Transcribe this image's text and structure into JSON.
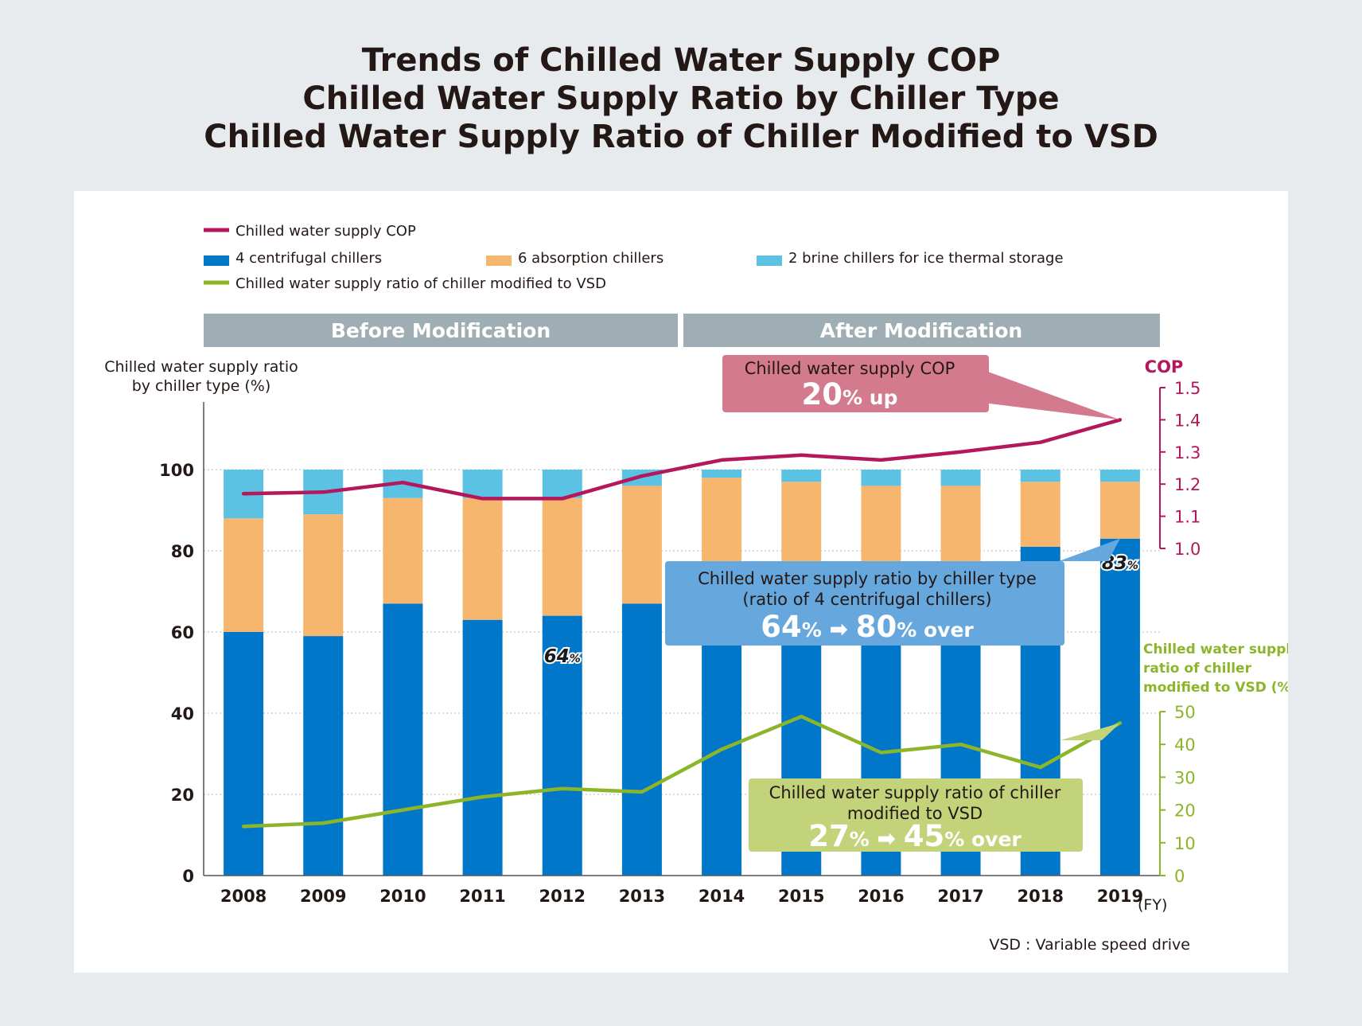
{
  "title_lines": [
    "Trends of Chilled Water Supply COP",
    "Chilled Water Supply Ratio by Chiller Type",
    "Chilled Water Supply Ratio of Chiller Modified to VSD"
  ],
  "colors": {
    "centrifugal": "#0077c8",
    "absorption": "#f7b66e",
    "brine": "#5bc2e4",
    "cop": "#b5175c",
    "vsd": "#8cb52a",
    "period_band": "#9eaeb4",
    "cop_callout": "#d47a8e",
    "ratio_callout": "#66a7dd",
    "vsd_callout": "#c3d37a"
  },
  "legend": {
    "cop": "Chilled water supply COP",
    "centrifugal": "4 centrifugal chillers",
    "absorption": "6 absorption chillers",
    "brine": "2 brine chillers for ice thermal storage",
    "vsd": "Chilled water supply ratio of chiller modified to VSD"
  },
  "periods": {
    "before": "Before Modification",
    "after": "After Modification"
  },
  "axes": {
    "left_label_lines": [
      "Chilled water supply ratio",
      "by chiller type (%)"
    ],
    "cop_label": "COP",
    "vsd_label_lines": [
      "Chilled water supply",
      "ratio of chiller",
      "modified to VSD (%)"
    ],
    "fy_label": "(FY)"
  },
  "callouts": {
    "cop": {
      "line1": "Chilled water supply COP",
      "big": "20",
      "small": "% up"
    },
    "ratio": {
      "line1": "Chilled water supply ratio by chiller type",
      "line2": "(ratio of 4 centrifugal chillers)",
      "big1": "64",
      "pct1": "%",
      "arrow": "➡",
      "big2": "80",
      "pct2": "% over"
    },
    "vsd": {
      "line1": "Chilled water supply ratio of chiller",
      "line2": "modified to VSD",
      "big1": "27",
      "pct1": "%",
      "arrow": "➡",
      "big2": "45",
      "pct2": "% over"
    }
  },
  "bar_labels": [
    {
      "year": "2012",
      "num": "64",
      "unit": "%"
    },
    {
      "year": "2019",
      "num": "83",
      "unit": "%"
    }
  ],
  "footnote": "VSD : Variable speed drive",
  "chart_data": {
    "type": "bar",
    "stacked": true,
    "categories": [
      "2008",
      "2009",
      "2010",
      "2011",
      "2012",
      "2013",
      "2014",
      "2015",
      "2016",
      "2017",
      "2018",
      "2019"
    ],
    "series": [
      {
        "name": "4 centrifugal chillers",
        "values": [
          60,
          59,
          67,
          63,
          64,
          67,
          67,
          68,
          67,
          69,
          81,
          83
        ]
      },
      {
        "name": "6 absorption chillers",
        "values": [
          28,
          30,
          26,
          30,
          29,
          29,
          31,
          29,
          29,
          27,
          16,
          14
        ]
      },
      {
        "name": "2 brine chillers for ice thermal storage",
        "values": [
          12,
          11,
          7,
          7,
          7,
          4,
          2,
          3,
          4,
          4,
          3,
          3
        ]
      }
    ],
    "lines": [
      {
        "name": "Chilled water supply COP",
        "axis": "cop",
        "values": [
          1.17,
          1.175,
          1.205,
          1.155,
          1.155,
          1.225,
          1.275,
          1.29,
          1.275,
          1.3,
          1.33,
          1.4
        ]
      },
      {
        "name": "Chilled water supply ratio of chiller modified to VSD",
        "axis": "vsd",
        "values": [
          15,
          16,
          20,
          24,
          26.5,
          25.5,
          38.5,
          48.5,
          37.5,
          40,
          33,
          46.5
        ]
      }
    ],
    "left_axis": {
      "ylim": [
        0,
        100
      ],
      "ticks": [
        0,
        20,
        40,
        60,
        80,
        100
      ]
    },
    "cop_axis": {
      "ylim": [
        1.0,
        1.5
      ],
      "ticks": [
        "1.0",
        "1.1",
        "1.2",
        "1.3",
        "1.4",
        "1.5"
      ]
    },
    "vsd_axis": {
      "ylim": [
        0,
        50
      ],
      "ticks": [
        0,
        10,
        20,
        30,
        40,
        50
      ]
    },
    "xlabel": "(FY)",
    "grid": true
  }
}
